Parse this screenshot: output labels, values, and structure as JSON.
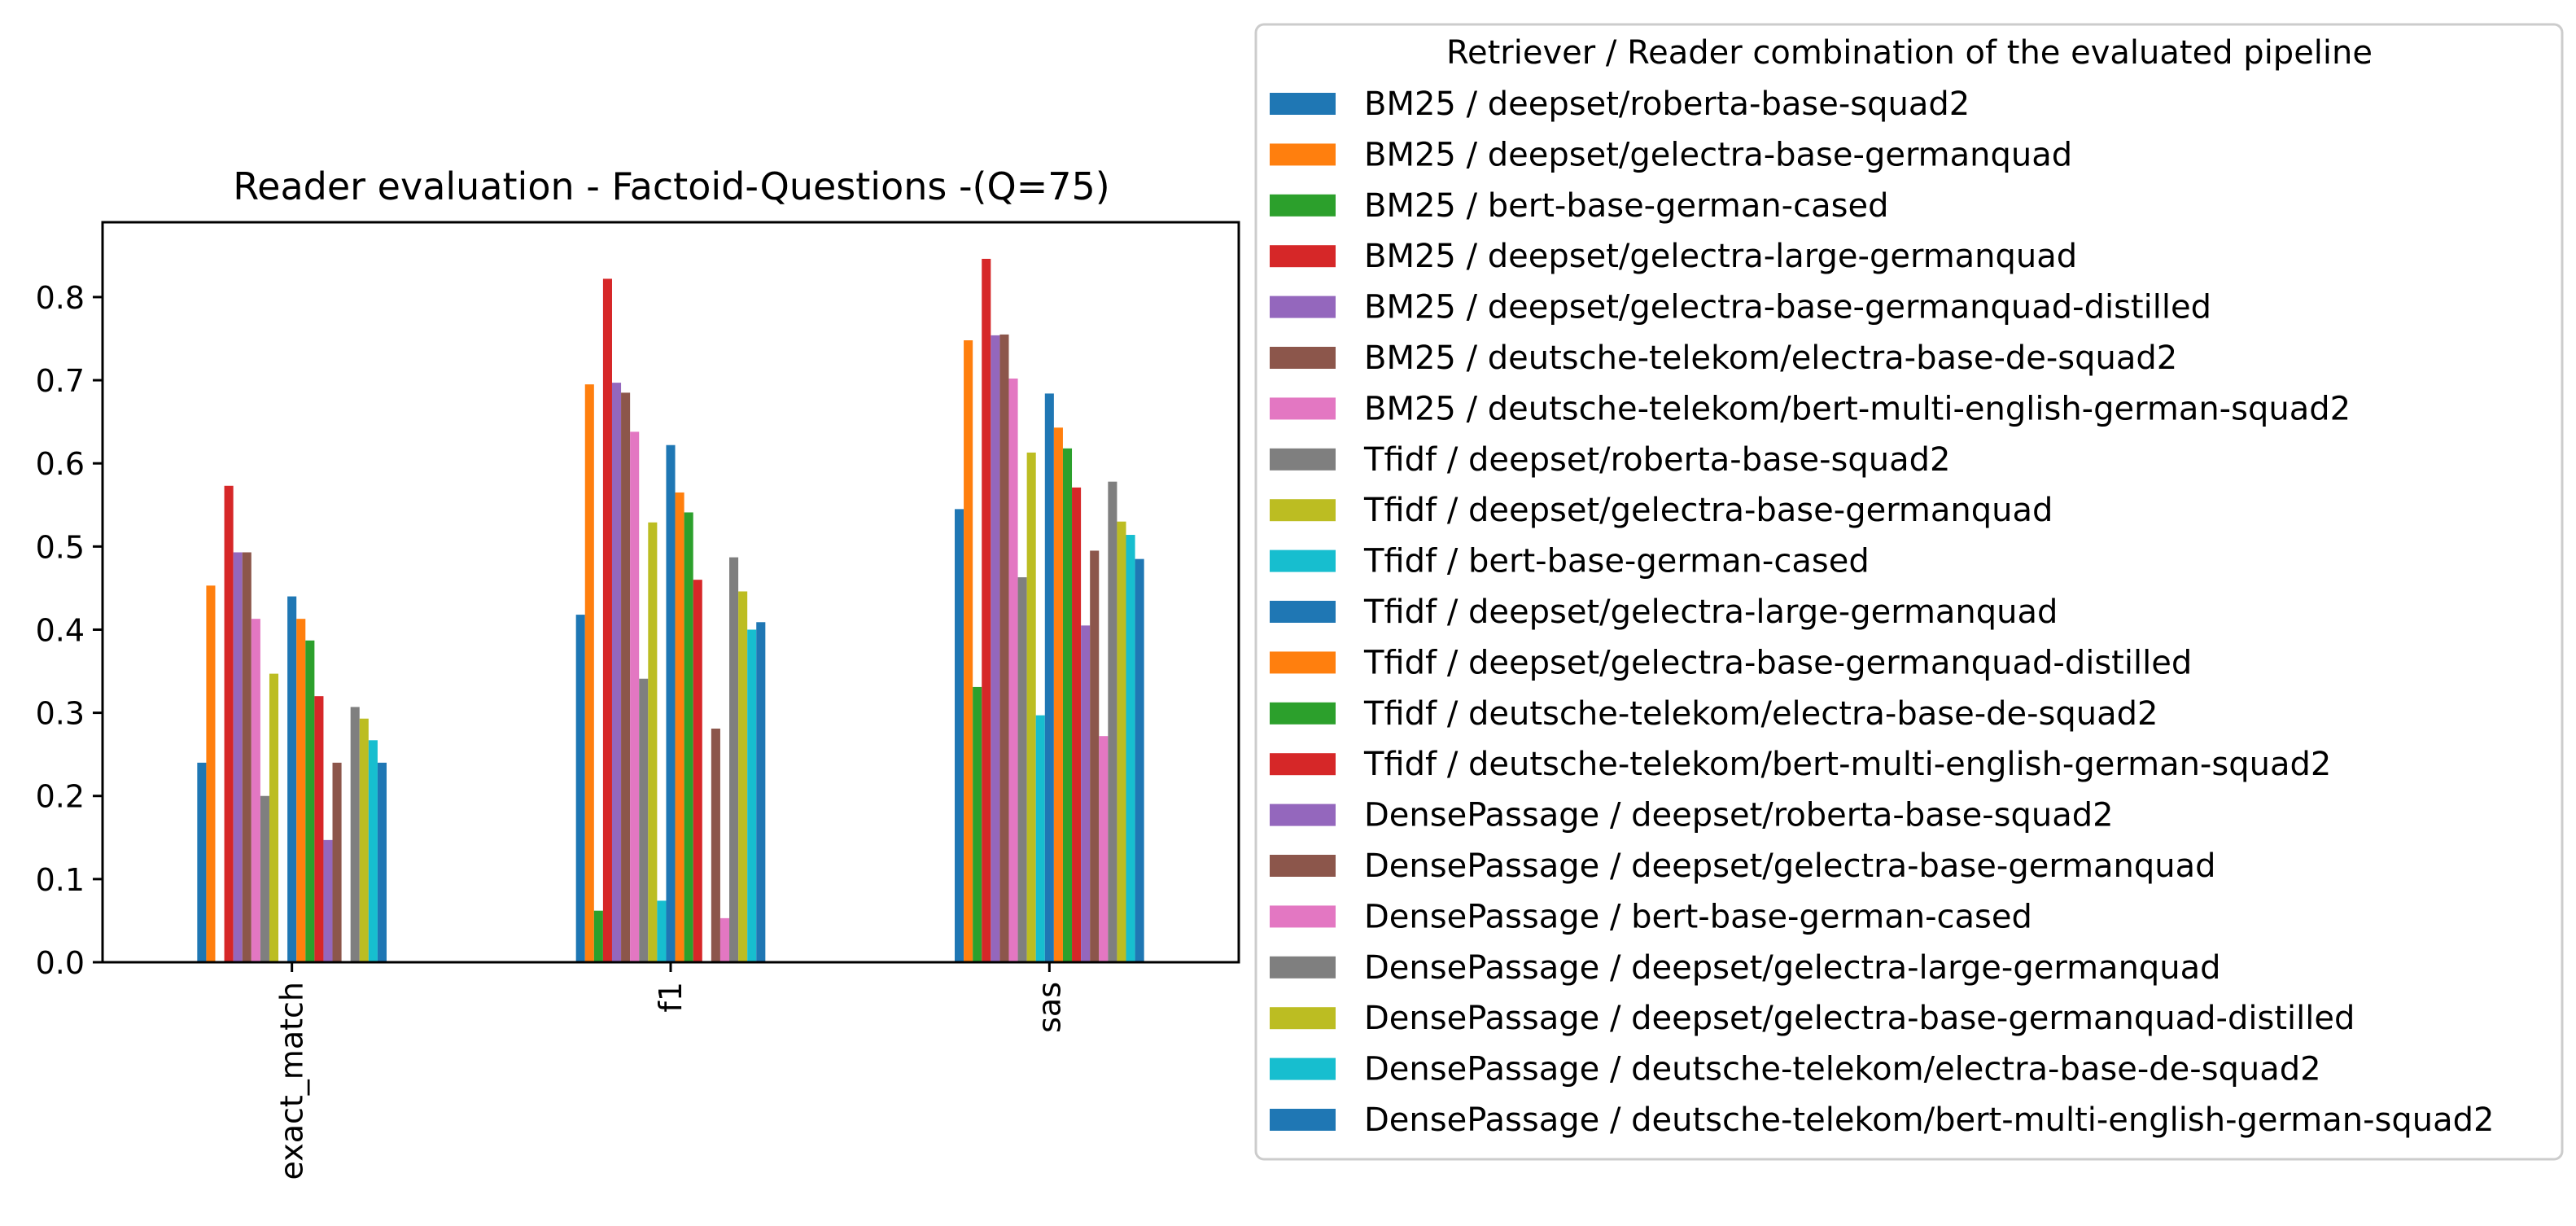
{
  "chart_data": {
    "type": "bar",
    "title": "Reader evaluation - Factoid-Questions -(Q=75)",
    "xlabel": "",
    "ylabel": "",
    "categories": [
      "exact_match",
      "f1",
      "sas"
    ],
    "ylim": [
      0,
      0.89
    ],
    "yticks": [
      "0.0",
      "0.1",
      "0.2",
      "0.3",
      "0.4",
      "0.5",
      "0.6",
      "0.7",
      "0.8"
    ],
    "grid": false,
    "legend": {
      "title": "Retriever / Reader combination of the evaluated pipeline",
      "placement": "outside-right"
    },
    "series": [
      {
        "name": "BM25 / deepset/roberta-base-squad2",
        "color": "#1f77b4",
        "values": [
          0.24,
          0.418,
          0.545
        ]
      },
      {
        "name": "BM25 / deepset/gelectra-base-germanquad",
        "color": "#ff7f0e",
        "values": [
          0.453,
          0.695,
          0.748
        ]
      },
      {
        "name": "BM25 / bert-base-german-cased",
        "color": "#2ca02c",
        "values": [
          0.0,
          0.062,
          0.331
        ]
      },
      {
        "name": "BM25 / deepset/gelectra-large-germanquad",
        "color": "#d62728",
        "values": [
          0.573,
          0.822,
          0.846
        ]
      },
      {
        "name": "BM25 / deepset/gelectra-base-germanquad-distilled",
        "color": "#9467bd",
        "values": [
          0.493,
          0.697,
          0.754
        ]
      },
      {
        "name": "BM25 / deutsche-telekom/electra-base-de-squad2",
        "color": "#8c564b",
        "values": [
          0.493,
          0.685,
          0.755
        ]
      },
      {
        "name": "BM25 / deutsche-telekom/bert-multi-english-german-squad2",
        "color": "#e377c2",
        "values": [
          0.413,
          0.638,
          0.702
        ]
      },
      {
        "name": "Tfidf / deepset/roberta-base-squad2",
        "color": "#7f7f7f",
        "values": [
          0.2,
          0.341,
          0.463
        ]
      },
      {
        "name": "Tfidf / deepset/gelectra-base-germanquad",
        "color": "#bcbd22",
        "values": [
          0.347,
          0.529,
          0.613
        ]
      },
      {
        "name": "Tfidf / bert-base-german-cased",
        "color": "#17becf",
        "values": [
          0.0,
          0.074,
          0.297
        ]
      },
      {
        "name": "Tfidf / deepset/gelectra-large-germanquad",
        "color": "#1f77b4",
        "values": [
          0.44,
          0.622,
          0.684
        ]
      },
      {
        "name": "Tfidf / deepset/gelectra-base-germanquad-distilled",
        "color": "#ff7f0e",
        "values": [
          0.413,
          0.565,
          0.643
        ]
      },
      {
        "name": "Tfidf / deutsche-telekom/electra-base-de-squad2",
        "color": "#2ca02c",
        "values": [
          0.387,
          0.541,
          0.618
        ]
      },
      {
        "name": "Tfidf / deutsche-telekom/bert-multi-english-german-squad2",
        "color": "#d62728",
        "values": [
          0.32,
          0.46,
          0.571
        ]
      },
      {
        "name": "DensePassage / deepset/roberta-base-squad2",
        "color": "#9467bd",
        "values": [
          0.147,
          0.0,
          0.405
        ]
      },
      {
        "name": "DensePassage / deepset/gelectra-base-germanquad",
        "color": "#8c564b",
        "values": [
          0.24,
          0.281,
          0.495
        ]
      },
      {
        "name": "DensePassage / bert-base-german-cased",
        "color": "#e377c2",
        "values": [
          0.0,
          0.053,
          0.272
        ]
      },
      {
        "name": "DensePassage / deepset/gelectra-large-germanquad",
        "color": "#7f7f7f",
        "values": [
          0.307,
          0.487,
          0.578
        ]
      },
      {
        "name": "DensePassage / deepset/gelectra-base-germanquad-distilled",
        "color": "#bcbd22",
        "values": [
          0.293,
          0.446,
          0.53
        ]
      },
      {
        "name": "DensePassage / deutsche-telekom/electra-base-de-squad2",
        "color": "#17becf",
        "values": [
          0.267,
          0.4,
          0.514
        ]
      },
      {
        "name": "DensePassage / deutsche-telekom/bert-multi-english-german-squad2",
        "color": "#1f77b4",
        "values": [
          0.24,
          0.409,
          0.485
        ]
      }
    ]
  }
}
